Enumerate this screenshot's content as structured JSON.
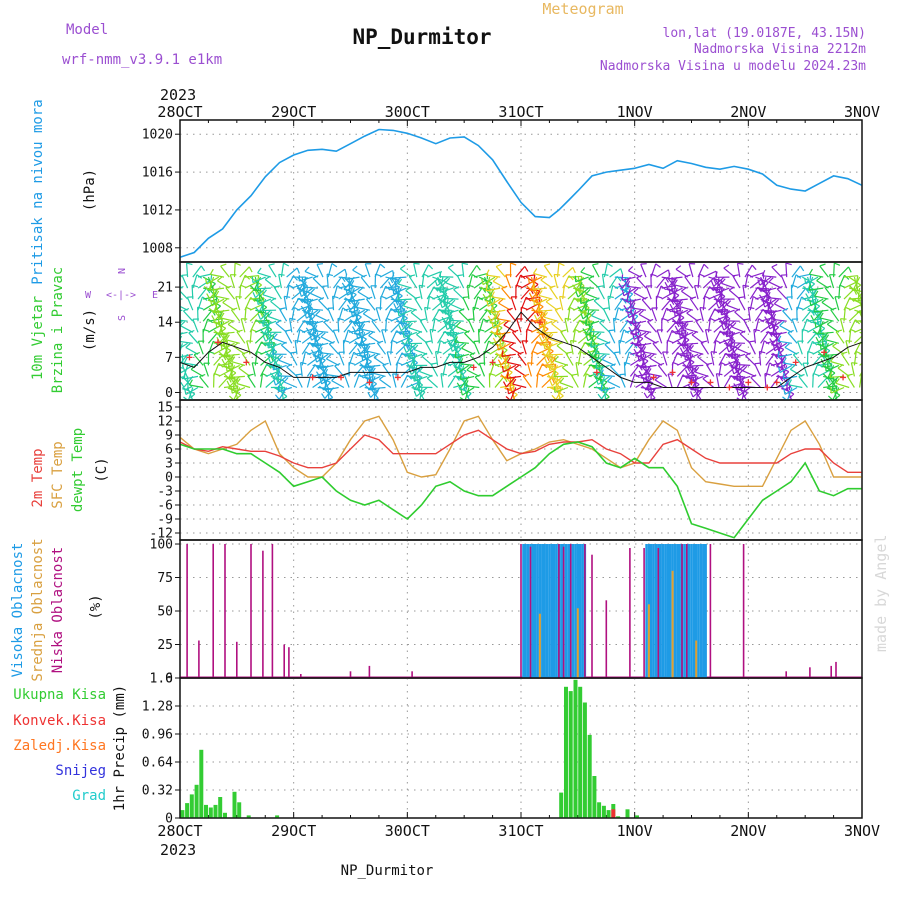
{
  "header": {
    "model_label": "Model",
    "model_name": "wrf-nmm_v3.9.1  e1km",
    "title": "NP_Durmitor",
    "product": "Meteogram",
    "lonlat": "lon,lat (19.0187E, 43.15N)",
    "elevation": "Nadmorska Visina 2212m",
    "model_elevation": "Nadmorska Visina u modelu 2024.23m",
    "bottom_title": "NP_Durmitor",
    "credit": "made by Angel"
  },
  "colors": {
    "pressure": "#1e9be6",
    "temp2m": "#e8413c",
    "sfc_temp": "#d9a040",
    "dewpt": "#2fcc2f",
    "high_cloud": "#1e9be6",
    "mid_cloud": "#e0a030",
    "low_cloud": "#b01080",
    "total_precip": "#33cc33",
    "conv_precip": "#ee3333",
    "frozen_precip": "#ff7722",
    "snow": "#3333dd",
    "hail": "#22cccc",
    "wind_max": "#111111",
    "wind_gust_marker": "#ee3333"
  },
  "axes": {
    "top_year": "2023",
    "bottom_year": "2023",
    "x_labels": [
      "28OCT",
      "29OCT",
      "30OCT",
      "31OCT",
      "1NOV",
      "2NOV",
      "3NOV"
    ]
  },
  "panels": {
    "pressure": {
      "label": "Pritisak na nivou mora",
      "unit": "(hPa)",
      "ticks": [
        "1008",
        "1012",
        "1016",
        "1020"
      ],
      "ylim": [
        1006.5,
        1021.5
      ]
    },
    "wind": {
      "label1": "10m Vjetar",
      "label2": "Brzina i Pravac",
      "unit": "(m/s)",
      "ticks": [
        "0",
        "7",
        "14",
        "21"
      ],
      "ylim": [
        -1.5,
        26
      ],
      "compass": {
        "n": "N",
        "w": "W",
        "e": "E",
        "s": "S",
        "arrows": "<-|->"
      }
    },
    "temp": {
      "label1": "2m Temp",
      "label2": "SFC Temp",
      "label3": "dewpt Temp",
      "unit": "(C)",
      "ticks": [
        "-12",
        "-9",
        "-6",
        "-3",
        "0",
        "3",
        "6",
        "9",
        "12",
        "15"
      ],
      "ylim": [
        -13.5,
        16.5
      ]
    },
    "cloud": {
      "label1": "Visoka Oblacnost",
      "label2": "Srednja Oblacnost",
      "label3": "Niska Oblacnost",
      "unit": "(%)",
      "ticks": [
        "0",
        "25",
        "50",
        "75",
        "100"
      ],
      "ylim": [
        0,
        103
      ]
    },
    "precip": {
      "legend": [
        "Ukupna Kisa",
        "Konvek.Kisa",
        "Zaledj.Kisa",
        "Snijeg",
        "Grad"
      ],
      "ylabel": "1hr Precip (mm)",
      "ticks": [
        "0",
        "0.32",
        "0.64",
        "0.96",
        "1.28",
        "1.6"
      ],
      "ylim": [
        0,
        1.6
      ]
    }
  },
  "chart_data": {
    "type": "line",
    "x_unit": "hours since 28OCT 00UTC",
    "x_range": [
      0,
      144
    ],
    "pressure": {
      "x": [
        0,
        3,
        6,
        9,
        12,
        15,
        18,
        21,
        24,
        27,
        30,
        33,
        36,
        39,
        42,
        45,
        48,
        51,
        54,
        57,
        60,
        63,
        66,
        69,
        72,
        75,
        78,
        80,
        82,
        84,
        87,
        90,
        93,
        96,
        99,
        102,
        105,
        108,
        111,
        114,
        117,
        120,
        123,
        126,
        129,
        132,
        135,
        138,
        141,
        144
      ],
      "y": [
        1007,
        1007.5,
        1009,
        1010,
        1012,
        1013.5,
        1015.5,
        1017,
        1017.8,
        1018.3,
        1018.4,
        1018.2,
        1019,
        1019.8,
        1020.5,
        1020.4,
        1020.1,
        1019.6,
        1019,
        1019.6,
        1019.7,
        1018.8,
        1017.3,
        1015,
        1012.8,
        1011.3,
        1011.2,
        1012,
        1013,
        1014,
        1015.6,
        1016,
        1016.2,
        1016.4,
        1016.8,
        1016.4,
        1017.2,
        1016.9,
        1016.5,
        1016.3,
        1016.6,
        1016.3,
        1015.8,
        1014.6,
        1014.2,
        1014.0,
        1014.8,
        1015.6,
        1015.3,
        1014.6
      ]
    },
    "wind": {
      "max_x": [
        0,
        3,
        6,
        9,
        12,
        15,
        18,
        21,
        24,
        27,
        30,
        33,
        36,
        39,
        42,
        45,
        48,
        51,
        54,
        57,
        60,
        63,
        66,
        69,
        72,
        75,
        78,
        81,
        84,
        87,
        90,
        93,
        96,
        99,
        102,
        105,
        108,
        111,
        114,
        117,
        120,
        123,
        126,
        129,
        132,
        135,
        138,
        141,
        144
      ],
      "max_y": [
        6,
        5,
        8,
        10,
        9,
        8,
        6,
        5,
        3,
        3,
        3,
        3,
        4,
        4,
        4,
        4,
        4,
        5,
        5,
        6,
        6,
        7,
        9,
        12,
        16,
        13,
        11,
        10,
        9,
        7,
        5,
        3,
        2,
        2,
        1,
        1,
        1,
        1,
        1,
        1,
        1,
        1,
        1,
        3,
        5,
        6,
        7,
        9,
        10
      ],
      "gust_x": [
        2,
        8,
        14,
        28,
        34,
        40,
        46,
        62,
        66,
        76,
        88,
        100,
        104,
        108,
        112,
        116,
        120,
        124,
        126,
        130,
        136,
        140
      ],
      "gust_y": [
        7,
        10,
        6,
        3,
        3,
        2,
        3,
        5,
        6,
        14,
        4,
        3,
        4,
        2,
        2,
        1,
        2,
        1,
        2,
        6,
        8,
        3
      ]
    },
    "temp": {
      "x": [
        0,
        3,
        6,
        9,
        12,
        15,
        18,
        21,
        24,
        27,
        30,
        33,
        36,
        39,
        42,
        45,
        48,
        51,
        54,
        57,
        60,
        63,
        66,
        69,
        72,
        75,
        78,
        81,
        84,
        87,
        90,
        93,
        96,
        99,
        102,
        105,
        108,
        111,
        114,
        117,
        120,
        123,
        126,
        129,
        132,
        135,
        138,
        141,
        144
      ],
      "t2m": [
        7.5,
        6,
        5.5,
        6.5,
        6,
        5.5,
        5.5,
        4.5,
        3,
        2,
        2,
        3,
        6,
        9,
        8,
        5,
        5,
        5,
        5,
        7,
        9,
        10,
        8,
        6,
        5,
        5.5,
        7,
        7.5,
        7.5,
        8,
        6,
        5,
        3,
        3,
        7,
        8,
        6,
        4,
        3,
        3,
        3,
        3,
        3,
        5,
        6,
        6,
        3,
        1,
        1
      ],
      "sfc": [
        8.5,
        6,
        5,
        6,
        7,
        10,
        12,
        5,
        2,
        0,
        0,
        3,
        8,
        12,
        13,
        8,
        1,
        0,
        0.5,
        6,
        12,
        13,
        8,
        3.5,
        5,
        6,
        7.5,
        8,
        7,
        6,
        4,
        2,
        3,
        8,
        12,
        10,
        2,
        -1,
        -1.5,
        -2,
        -2,
        -2,
        4,
        10,
        12,
        7,
        0,
        0,
        0
      ],
      "dewpt": [
        7,
        6,
        6,
        6,
        5,
        5,
        3,
        1,
        -2,
        -1,
        0,
        -3,
        -5,
        -6,
        -5,
        -7,
        -9,
        -6,
        -2,
        -1,
        -3,
        -4,
        -4,
        -2,
        0,
        2,
        5,
        7,
        7.5,
        6.5,
        3,
        2,
        4,
        2,
        2,
        -2,
        -10,
        -11,
        -12,
        -13,
        -9,
        -5,
        -3,
        -1,
        3,
        -3,
        -4,
        -2.5,
        -2.5
      ]
    },
    "cloud": {
      "low_x": [
        1.5,
        4,
        7,
        9.5,
        12,
        15,
        17.5,
        19.5,
        22,
        23,
        25.5,
        26.5,
        36,
        40,
        49,
        72,
        74,
        80,
        81,
        82.5,
        85.5,
        87,
        90,
        95,
        98,
        101,
        106,
        107,
        112,
        119,
        128,
        133,
        137.5,
        138.5
      ],
      "low_y": [
        100,
        28,
        100,
        100,
        27,
        100,
        95,
        100,
        25,
        23,
        3,
        1,
        5,
        9,
        5,
        100,
        98,
        100,
        98,
        100,
        100,
        92,
        58,
        97,
        97,
        97,
        100,
        100,
        100,
        100,
        5,
        8,
        9,
        12
      ],
      "high_start": 72.5,
      "high_end": 85.5,
      "high2_start": 98.5,
      "high2_end": 111,
      "high_y": 100,
      "mid_x": [
        76,
        84,
        99,
        104,
        109
      ],
      "mid_y": [
        48,
        52,
        55,
        80,
        28
      ]
    },
    "precip": {
      "total_x": [
        0.5,
        1.5,
        2.5,
        3.5,
        4.5,
        5.5,
        6.5,
        7.5,
        8.5,
        9.5,
        11.5,
        12.5,
        14.5,
        20.5,
        80.5,
        81.5,
        82.5,
        83.5,
        84.5,
        85.5,
        86.5,
        87.5,
        88.5,
        89.5,
        90.5,
        91.5,
        92.5,
        94.5,
        96.5
      ],
      "total_y": [
        0.09,
        0.17,
        0.27,
        0.38,
        0.78,
        0.15,
        0.12,
        0.15,
        0.24,
        0.06,
        0.3,
        0.18,
        0.03,
        0.03,
        0.29,
        1.5,
        1.45,
        1.58,
        1.5,
        1.32,
        0.95,
        0.48,
        0.18,
        0.14,
        0.09,
        0.16,
        0.02,
        0.1,
        0.03
      ],
      "conv_x": [
        91.5
      ],
      "conv_y": [
        0.1
      ]
    }
  }
}
